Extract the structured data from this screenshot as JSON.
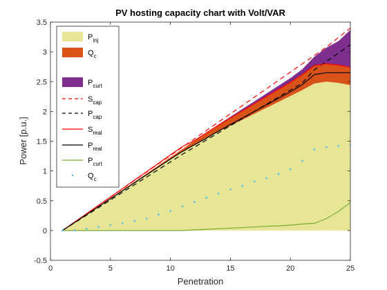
{
  "chart_data": {
    "type": "area",
    "title": "PV hosting capacity chart with Volt/VAR",
    "xlabel": "Penetration",
    "ylabel": "Power [p.u.]",
    "xlim": [
      0,
      25
    ],
    "ylim": [
      -0.5,
      3.5
    ],
    "xticks": [
      "0",
      "5",
      "10",
      "15",
      "20",
      "25"
    ],
    "yticks": [
      "-0.5",
      "0",
      "0.5",
      "1",
      "1.5",
      "2",
      "2.5",
      "3",
      "3.5"
    ],
    "grid": false,
    "legend_position": "top-left",
    "x": [
      1,
      2,
      3,
      4,
      5,
      6,
      7,
      8,
      9,
      10,
      11,
      12,
      13,
      14,
      15,
      16,
      17,
      18,
      19,
      20,
      21,
      22,
      23,
      24,
      25
    ],
    "series": [
      {
        "name": "P_inj",
        "base": "P",
        "sub": "inj",
        "kind": "area",
        "color": "#e6e696",
        "values": [
          0.0,
          0.133,
          0.267,
          0.4,
          0.534,
          0.667,
          0.8,
          0.934,
          1.067,
          1.2,
          1.327,
          1.44,
          1.55,
          1.66,
          1.76,
          1.86,
          1.96,
          2.06,
          2.16,
          2.26,
          2.36,
          2.47,
          2.5,
          2.48,
          2.44
        ]
      },
      {
        "name": "Q_c",
        "base": "Q",
        "sub": "c",
        "kind": "area",
        "color": "#d95319",
        "values": [
          0.0,
          0.003,
          0.006,
          0.009,
          0.012,
          0.015,
          0.018,
          0.021,
          0.025,
          0.03,
          0.04,
          0.07,
          0.09,
          0.11,
          0.13,
          0.15,
          0.17,
          0.19,
          0.21,
          0.23,
          0.26,
          0.3,
          0.3,
          0.3,
          0.3
        ]
      },
      {
        "name": "P_curt",
        "base": "P",
        "sub": "curt",
        "kind": "area",
        "color": "#7e2f8e",
        "values": [
          0.0,
          0.0,
          0.0,
          0.0,
          0.0,
          0.0,
          0.0,
          0.0,
          0.0,
          0.0,
          0.0,
          0.0,
          0.0,
          0.01,
          0.02,
          0.03,
          0.04,
          0.05,
          0.06,
          0.07,
          0.09,
          0.15,
          0.27,
          0.4,
          0.63
        ]
      },
      {
        "name": "S_cap",
        "base": "S",
        "sub": "cap",
        "kind": "line",
        "color": "#ff0000",
        "dash": "7,5",
        "values": [
          0.0,
          0.14,
          0.28,
          0.42,
          0.56,
          0.7,
          0.84,
          0.98,
          1.12,
          1.26,
          1.4,
          1.54,
          1.68,
          1.82,
          1.96,
          2.1,
          2.24,
          2.38,
          2.52,
          2.66,
          2.8,
          2.94,
          3.08,
          3.24,
          3.4
        ]
      },
      {
        "name": "P_cap",
        "base": "P",
        "sub": "cap",
        "kind": "line",
        "color": "#000000",
        "dash": "7,5",
        "values": [
          0.0,
          0.128,
          0.256,
          0.384,
          0.512,
          0.64,
          0.768,
          0.896,
          1.024,
          1.152,
          1.28,
          1.4,
          1.52,
          1.64,
          1.76,
          1.88,
          2.0,
          2.12,
          2.24,
          2.36,
          2.48,
          2.7,
          2.84,
          2.98,
          3.12
        ]
      },
      {
        "name": "S_real",
        "base": "S",
        "sub": "real",
        "kind": "line",
        "color": "#ff0000",
        "dash": "",
        "values": [
          0.0,
          0.141,
          0.282,
          0.423,
          0.564,
          0.705,
          0.846,
          0.987,
          1.128,
          1.269,
          1.41,
          1.51,
          1.64,
          1.77,
          1.89,
          2.01,
          2.13,
          2.25,
          2.37,
          2.49,
          2.62,
          2.77,
          2.8,
          2.78,
          2.74
        ]
      },
      {
        "name": "P_real",
        "base": "P",
        "sub": "real",
        "kind": "line",
        "color": "#000000",
        "dash": "",
        "values": [
          0.0,
          0.133,
          0.267,
          0.4,
          0.534,
          0.667,
          0.8,
          0.934,
          1.067,
          1.2,
          1.327,
          1.44,
          1.55,
          1.67,
          1.78,
          1.89,
          2.0,
          2.11,
          2.22,
          2.33,
          2.45,
          2.62,
          2.65,
          2.65,
          2.65
        ]
      },
      {
        "name": "P_curt",
        "base": "P",
        "sub": "curt",
        "kind": "line",
        "color": "#77ac30",
        "dash": "",
        "values": [
          0.0,
          0.0,
          0.0,
          0.0,
          0.0,
          0.0,
          0.0,
          0.0,
          0.0,
          0.0,
          0.0,
          0.01,
          0.02,
          0.03,
          0.04,
          0.05,
          0.06,
          0.07,
          0.08,
          0.09,
          0.11,
          0.12,
          0.2,
          0.32,
          0.47
        ]
      },
      {
        "name": "Q_c",
        "base": "Q",
        "sub": "c",
        "kind": "dots",
        "color": "#4dbeee",
        "values": [
          0.0,
          0.005,
          0.03,
          0.06,
          0.09,
          0.12,
          0.16,
          0.2,
          0.27,
          0.33,
          0.41,
          0.48,
          0.55,
          0.62,
          0.69,
          0.75,
          0.82,
          0.88,
          0.95,
          1.03,
          1.17,
          1.36,
          1.4,
          1.42,
          1.43
        ]
      }
    ]
  }
}
